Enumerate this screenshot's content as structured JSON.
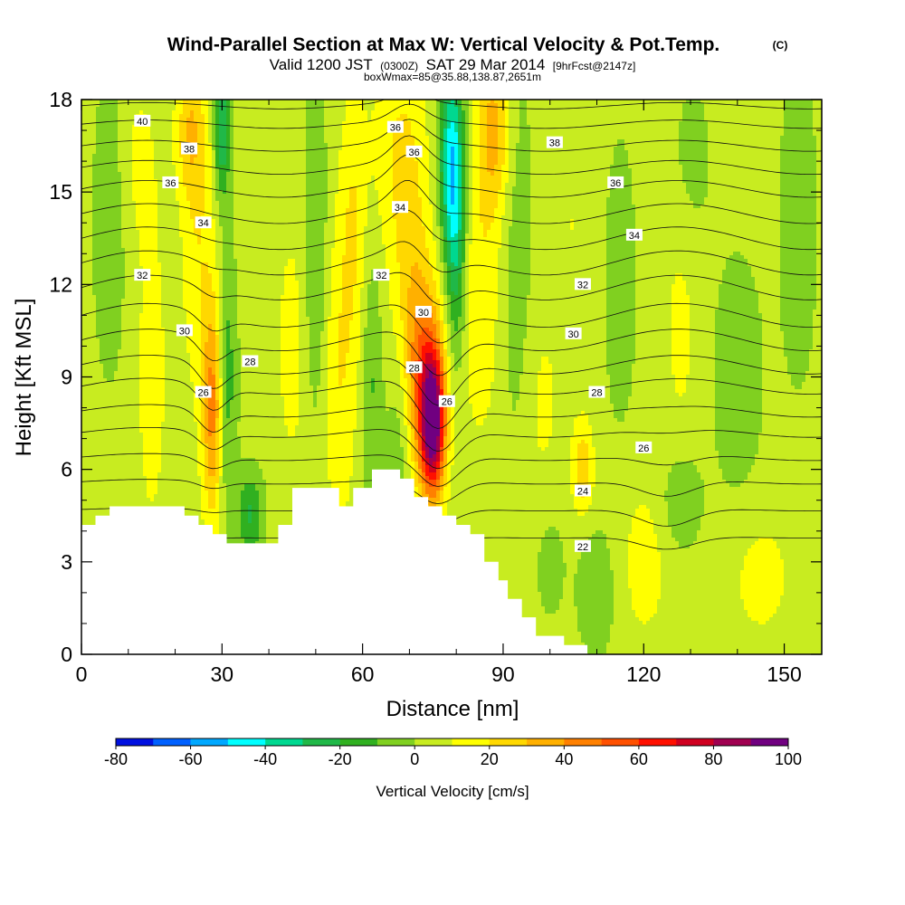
{
  "chart_data": {
    "type": "heatmap",
    "title": "Wind-Parallel Section at Max W: Vertical Velocity & Pot.Temp.",
    "title_mark": "(C)",
    "subtitle_parts": [
      "Valid 1200 JST",
      "(0300Z)",
      "SAT 29 Mar 2014",
      "[9hrFcst@2147z]"
    ],
    "subtitle2": "boxWmax=85@35.88,138.87,2651m",
    "xlabel": "Distance [nm]",
    "ylabel": "Height [Kft MSL]",
    "xlim": [
      0,
      158
    ],
    "ylim": [
      0,
      18
    ],
    "x_ticks": [
      0,
      30,
      60,
      90,
      120,
      150
    ],
    "y_ticks": [
      0,
      3,
      6,
      9,
      12,
      15,
      18
    ],
    "colorbar": {
      "label": "Vertical Velocity [cm/s]",
      "range": [
        -80,
        100
      ],
      "tick_values": [
        -80,
        -60,
        -40,
        -20,
        0,
        20,
        40,
        60,
        80,
        100
      ],
      "colors": [
        "#0010e0",
        "#0060ff",
        "#00a8ff",
        "#00ffff",
        "#00d890",
        "#20b848",
        "#30b020",
        "#80d020",
        "#c8ec20",
        "#ffff00",
        "#ffd800",
        "#ffb000",
        "#ff8000",
        "#ff5000",
        "#ff1000",
        "#d00020",
        "#a00050",
        "#700080"
      ]
    },
    "terrain_profile": [
      [
        0,
        4.2
      ],
      [
        3,
        4.2
      ],
      [
        3,
        4.5
      ],
      [
        6,
        4.5
      ],
      [
        6,
        4.8
      ],
      [
        22,
        4.8
      ],
      [
        22,
        4.5
      ],
      [
        25,
        4.5
      ],
      [
        25,
        4.2
      ],
      [
        28,
        4.2
      ],
      [
        28,
        3.9
      ],
      [
        31,
        3.9
      ],
      [
        31,
        3.6
      ],
      [
        42,
        3.6
      ],
      [
        42,
        4.2
      ],
      [
        45,
        4.2
      ],
      [
        45,
        5.4
      ],
      [
        55,
        5.4
      ],
      [
        55,
        4.8
      ],
      [
        58,
        4.8
      ],
      [
        58,
        5.4
      ],
      [
        62,
        5.4
      ],
      [
        62,
        6.0
      ],
      [
        68,
        6.0
      ],
      [
        68,
        5.7
      ],
      [
        71,
        5.7
      ],
      [
        71,
        5.1
      ],
      [
        74,
        5.1
      ],
      [
        74,
        4.8
      ],
      [
        77,
        4.8
      ],
      [
        77,
        4.5
      ],
      [
        80,
        4.5
      ],
      [
        80,
        4.2
      ],
      [
        83,
        4.2
      ],
      [
        83,
        3.9
      ],
      [
        86,
        3.9
      ],
      [
        86,
        3.0
      ],
      [
        89,
        3.0
      ],
      [
        89,
        2.4
      ],
      [
        91,
        2.4
      ],
      [
        91,
        1.8
      ],
      [
        94,
        1.8
      ],
      [
        94,
        1.2
      ],
      [
        97,
        1.2
      ],
      [
        97,
        0.6
      ],
      [
        103,
        0.6
      ],
      [
        103,
        0.3
      ],
      [
        108,
        0.3
      ]
    ],
    "w_features": [
      {
        "x": 75,
        "y": 7.5,
        "sx": 1.8,
        "sy": 1.6,
        "w": 85
      },
      {
        "x": 73,
        "y": 9.0,
        "sx": 3.0,
        "sy": 2.4,
        "w": 40
      },
      {
        "x": 70,
        "y": 13.0,
        "sx": 3.0,
        "sy": 3.5,
        "w": 15
      },
      {
        "x": 67,
        "y": 16.5,
        "sx": 4.0,
        "sy": 2.5,
        "w": 12
      },
      {
        "x": 79,
        "y": 16.0,
        "sx": 1.8,
        "sy": 2.2,
        "w": -50
      },
      {
        "x": 80,
        "y": 12.5,
        "sx": 1.5,
        "sy": 2.5,
        "w": -25
      },
      {
        "x": 88,
        "y": 17.0,
        "sx": 2.5,
        "sy": 2.0,
        "w": 30
      },
      {
        "x": 85,
        "y": 11.5,
        "sx": 3.0,
        "sy": 3.0,
        "w": 15
      },
      {
        "x": 28,
        "y": 8.0,
        "sx": 1.5,
        "sy": 2.5,
        "w": 40
      },
      {
        "x": 25,
        "y": 14.0,
        "sx": 2.5,
        "sy": 4.0,
        "w": 15
      },
      {
        "x": 23,
        "y": 17.0,
        "sx": 2.0,
        "sy": 1.5,
        "w": 20
      },
      {
        "x": 31,
        "y": 9.0,
        "sx": 1.5,
        "sy": 3.0,
        "w": -20
      },
      {
        "x": 30,
        "y": 17.0,
        "sx": 1.2,
        "sy": 1.5,
        "w": -35
      },
      {
        "x": 36,
        "y": 4.5,
        "sx": 2.0,
        "sy": 1.0,
        "w": -25
      },
      {
        "x": 50,
        "y": 13.0,
        "sx": 1.8,
        "sy": 4.0,
        "w": -15
      },
      {
        "x": 55,
        "y": 9.0,
        "sx": 2.5,
        "sy": 3.5,
        "w": 15
      },
      {
        "x": 58,
        "y": 14.0,
        "sx": 2.0,
        "sy": 3.0,
        "w": 15
      },
      {
        "x": 62,
        "y": 9.0,
        "sx": 1.5,
        "sy": 3.0,
        "w": -15
      },
      {
        "x": 45,
        "y": 10.0,
        "sx": 2.5,
        "sy": 3.0,
        "w": 10
      },
      {
        "x": 15,
        "y": 9.0,
        "sx": 2.5,
        "sy": 4.0,
        "w": 10
      },
      {
        "x": 6,
        "y": 14.0,
        "sx": 2.5,
        "sy": 3.5,
        "w": -12
      },
      {
        "x": 12,
        "y": 16.0,
        "sx": 3.0,
        "sy": 2.0,
        "w": 8
      },
      {
        "x": 68,
        "y": 7.0,
        "sx": 2.0,
        "sy": 2.5,
        "w": -15
      },
      {
        "x": 93,
        "y": 13.0,
        "sx": 2.5,
        "sy": 5.0,
        "w": -10
      },
      {
        "x": 98,
        "y": 8.0,
        "sx": 3.0,
        "sy": 2.5,
        "w": 8
      },
      {
        "x": 107,
        "y": 6.0,
        "sx": 1.5,
        "sy": 1.0,
        "w": 25
      },
      {
        "x": 105,
        "y": 14.0,
        "sx": 3.0,
        "sy": 4.0,
        "w": 6
      },
      {
        "x": 115,
        "y": 12.0,
        "sx": 2.5,
        "sy": 3.5,
        "w": -10
      },
      {
        "x": 128,
        "y": 11.0,
        "sx": 3.0,
        "sy": 4.0,
        "w": 8
      },
      {
        "x": 130,
        "y": 16.0,
        "sx": 3.0,
        "sy": 2.0,
        "w": -10
      },
      {
        "x": 140,
        "y": 9.0,
        "sx": 4.0,
        "sy": 3.0,
        "w": -10
      },
      {
        "x": 153,
        "y": 14.0,
        "sx": 3.0,
        "sy": 4.0,
        "w": -10
      },
      {
        "x": 120,
        "y": 3.0,
        "sx": 4.0,
        "sy": 2.0,
        "w": 10
      },
      {
        "x": 110,
        "y": 2.0,
        "sx": 3.0,
        "sy": 1.5,
        "w": -12
      },
      {
        "x": 145,
        "y": 2.5,
        "sx": 5.0,
        "sy": 1.5,
        "w": 10
      },
      {
        "x": 128,
        "y": 5.0,
        "sx": 3.0,
        "sy": 1.2,
        "w": -15
      },
      {
        "x": 100,
        "y": 3.0,
        "sx": 2.5,
        "sy": 1.5,
        "w": -8
      }
    ],
    "theta_isentropes": [
      {
        "theta": 22,
        "base": 3.8
      },
      {
        "theta": 23,
        "base": 4.7
      },
      {
        "theta": 24,
        "base": 5.6
      },
      {
        "theta": 25,
        "base": 6.4
      },
      {
        "theta": 26,
        "base": 7.2
      },
      {
        "theta": 27,
        "base": 7.9
      },
      {
        "theta": 28,
        "base": 8.7
      },
      {
        "theta": 29,
        "base": 9.4
      },
      {
        "theta": 30,
        "base": 10.2
      },
      {
        "theta": 31,
        "base": 11.0
      },
      {
        "theta": 32,
        "base": 11.9
      },
      {
        "theta": 33,
        "base": 12.7
      },
      {
        "theta": 34,
        "base": 13.5
      },
      {
        "theta": 35,
        "base": 14.3
      },
      {
        "theta": 36,
        "base": 15.1
      },
      {
        "theta": 37,
        "base": 15.8
      },
      {
        "theta": 38,
        "base": 16.5
      },
      {
        "theta": 39,
        "base": 17.2
      },
      {
        "theta": 40,
        "base": 17.8
      }
    ],
    "contour_labels": [
      {
        "text": "40",
        "x": 13,
        "y": 17.3
      },
      {
        "text": "38",
        "x": 23,
        "y": 16.4
      },
      {
        "text": "36",
        "x": 19,
        "y": 15.3
      },
      {
        "text": "34",
        "x": 26,
        "y": 14.0
      },
      {
        "text": "32",
        "x": 13,
        "y": 12.3
      },
      {
        "text": "30",
        "x": 22,
        "y": 10.5
      },
      {
        "text": "28",
        "x": 36,
        "y": 9.5
      },
      {
        "text": "26",
        "x": 26,
        "y": 8.5
      },
      {
        "text": "36",
        "x": 67,
        "y": 17.1
      },
      {
        "text": "36",
        "x": 71,
        "y": 16.3
      },
      {
        "text": "34",
        "x": 68,
        "y": 14.5
      },
      {
        "text": "32",
        "x": 64,
        "y": 12.3
      },
      {
        "text": "30",
        "x": 73,
        "y": 11.1
      },
      {
        "text": "28",
        "x": 71,
        "y": 9.3
      },
      {
        "text": "26",
        "x": 78,
        "y": 8.2
      },
      {
        "text": "38",
        "x": 101,
        "y": 16.6
      },
      {
        "text": "36",
        "x": 114,
        "y": 15.3
      },
      {
        "text": "34",
        "x": 118,
        "y": 13.6
      },
      {
        "text": "32",
        "x": 107,
        "y": 12.0
      },
      {
        "text": "30",
        "x": 105,
        "y": 10.4
      },
      {
        "text": "28",
        "x": 110,
        "y": 8.5
      },
      {
        "text": "26",
        "x": 120,
        "y": 6.7
      },
      {
        "text": "24",
        "x": 107,
        "y": 5.3
      },
      {
        "text": "22",
        "x": 107,
        "y": 3.5
      }
    ]
  }
}
